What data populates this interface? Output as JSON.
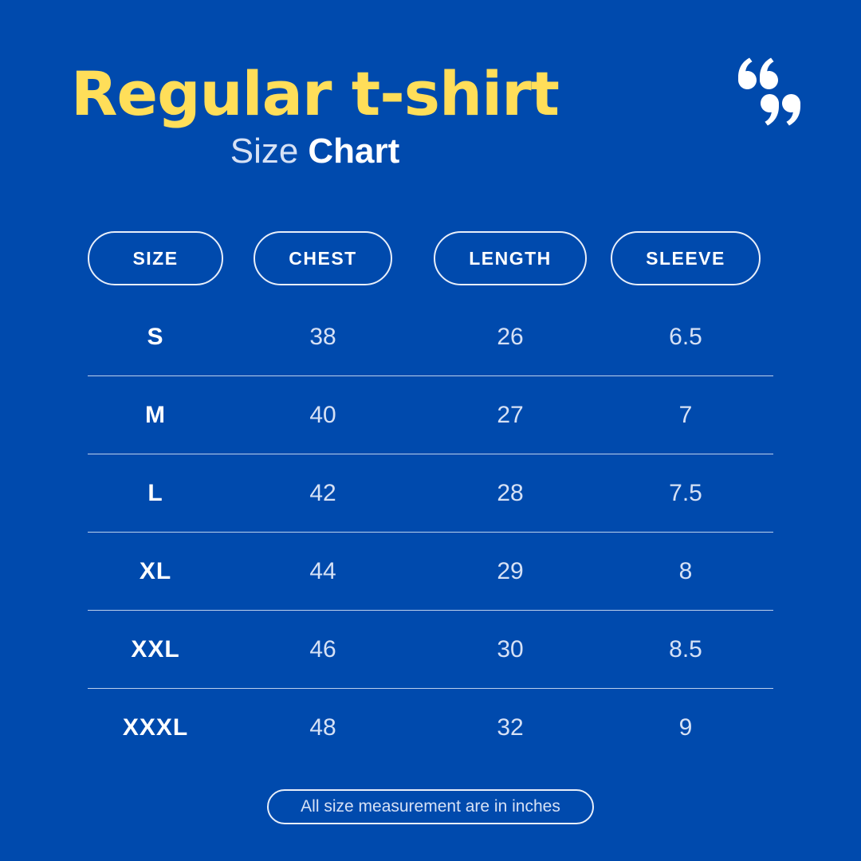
{
  "colors": {
    "background": "#004AAD",
    "title-yellow": "#FFDE59",
    "text-light": "#D6E1F5",
    "text-white": "#FFFFFF",
    "line": "#E8EFFA"
  },
  "header": {
    "title": "Regular t-shirt",
    "subtitle_regular": "Size",
    "subtitle_bold": "Chart"
  },
  "icons": {
    "quotes": "double-quotation-marks"
  },
  "chart_data": {
    "type": "table",
    "title": "Regular t-shirt Size Chart",
    "columns": [
      "SIZE",
      "CHEST",
      "LENGTH",
      "SLEEVE"
    ],
    "rows": [
      [
        "S",
        "38",
        "26",
        "6.5"
      ],
      [
        "M",
        "40",
        "27",
        "7"
      ],
      [
        "L",
        "42",
        "28",
        "7.5"
      ],
      [
        "XL",
        "44",
        "29",
        "8"
      ],
      [
        "XXL",
        "46",
        "30",
        "8.5"
      ],
      [
        "XXXL",
        "48",
        "32",
        "9"
      ]
    ],
    "units": "inches"
  },
  "footer": {
    "note": "All size measurement are in inches"
  }
}
